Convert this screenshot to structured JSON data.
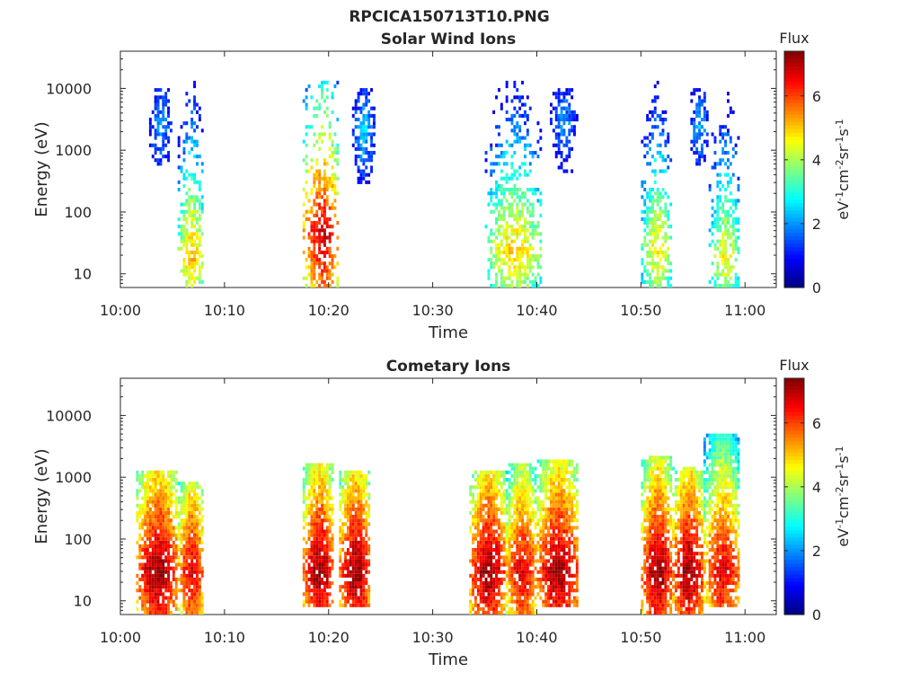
{
  "figure": {
    "title": "RPCICA150713T10.PNG"
  },
  "colorbar": {
    "label": "Flux",
    "unit_parts": [
      "eV",
      "-1",
      "cm",
      "-2",
      "sr",
      "-1",
      "s",
      "-1"
    ],
    "range": [
      0,
      7.4
    ],
    "ticks": [
      "0",
      "2",
      "4",
      "6"
    ]
  },
  "chart_data": [
    {
      "type": "heatmap",
      "title": "Solar Wind Ions",
      "xlabel": "Time",
      "ylabel": "Energy (eV)",
      "x_ticks": [
        "10:00",
        "10:10",
        "10:20",
        "10:30",
        "10:40",
        "10:50",
        "11:00"
      ],
      "xlim_minutes": [
        0,
        63
      ],
      "y_scale": "log",
      "y_ticks": [
        "10",
        "100",
        "1000",
        "10000"
      ],
      "ylim_eV": [
        6,
        40000
      ],
      "bursts": [
        {
          "start": "10:02:30",
          "end": "10:05:00",
          "emin_eV": 600,
          "emax_eV": 10000,
          "peak_eV": 2500,
          "peak_flux": 2.1
        },
        {
          "start": "10:05:30",
          "end": "10:08:00",
          "emin_eV": 6,
          "emax_eV": 14000,
          "peak_eV": 20,
          "peak_flux": 5.2
        },
        {
          "start": "10:17:30",
          "end": "10:21:00",
          "emin_eV": 6,
          "emax_eV": 14000,
          "peak_eV": 40,
          "peak_flux": 6.8
        },
        {
          "start": "10:22:00",
          "end": "10:24:30",
          "emin_eV": 300,
          "emax_eV": 10000,
          "peak_eV": 2000,
          "peak_flux": 2.4
        },
        {
          "start": "10:35:00",
          "end": "10:40:30",
          "emin_eV": 6,
          "emax_eV": 14000,
          "peak_eV": 25,
          "peak_flux": 5.0
        },
        {
          "start": "10:41:00",
          "end": "10:44:00",
          "emin_eV": 400,
          "emax_eV": 10000,
          "peak_eV": 3000,
          "peak_flux": 2.0
        },
        {
          "start": "10:50:00",
          "end": "10:53:00",
          "emin_eV": 6,
          "emax_eV": 14000,
          "peak_eV": 25,
          "peak_flux": 4.8
        },
        {
          "start": "10:54:30",
          "end": "10:56:30",
          "emin_eV": 600,
          "emax_eV": 10000,
          "peak_eV": 2500,
          "peak_flux": 2.2
        },
        {
          "start": "10:56:30",
          "end": "10:59:30",
          "emin_eV": 6,
          "emax_eV": 14000,
          "peak_eV": 20,
          "peak_flux": 4.6
        }
      ]
    },
    {
      "type": "heatmap",
      "title": "Cometary Ions",
      "xlabel": "Time",
      "ylabel": "Energy (eV)",
      "x_ticks": [
        "10:00",
        "10:10",
        "10:20",
        "10:30",
        "10:40",
        "10:50",
        "11:00"
      ],
      "xlim_minutes": [
        0,
        63
      ],
      "y_scale": "log",
      "y_ticks": [
        "10",
        "100",
        "1000",
        "10000"
      ],
      "ylim_eV": [
        6,
        40000
      ],
      "bursts": [
        {
          "start": "10:01:30",
          "end": "10:05:30",
          "emin_eV": 6,
          "emax_eV": 1300,
          "peak_eV": 30,
          "peak_flux": 7.3
        },
        {
          "start": "10:05:30",
          "end": "10:08:00",
          "emin_eV": 6,
          "emax_eV": 800,
          "peak_eV": 30,
          "peak_flux": 6.8
        },
        {
          "start": "10:17:30",
          "end": "10:20:30",
          "emin_eV": 8,
          "emax_eV": 1700,
          "peak_eV": 30,
          "peak_flux": 7.3
        },
        {
          "start": "10:21:00",
          "end": "10:24:00",
          "emin_eV": 8,
          "emax_eV": 1300,
          "peak_eV": 30,
          "peak_flux": 7.3
        },
        {
          "start": "10:33:30",
          "end": "10:37:00",
          "emin_eV": 6,
          "emax_eV": 1300,
          "peak_eV": 30,
          "peak_flux": 7.3
        },
        {
          "start": "10:37:00",
          "end": "10:40:00",
          "emin_eV": 6,
          "emax_eV": 1600,
          "peak_eV": 30,
          "peak_flux": 6.8
        },
        {
          "start": "10:40:00",
          "end": "10:44:00",
          "emin_eV": 8,
          "emax_eV": 2000,
          "peak_eV": 30,
          "peak_flux": 7.3
        },
        {
          "start": "10:50:00",
          "end": "10:53:00",
          "emin_eV": 6,
          "emax_eV": 2200,
          "peak_eV": 30,
          "peak_flux": 7.3
        },
        {
          "start": "10:53:00",
          "end": "10:56:00",
          "emin_eV": 6,
          "emax_eV": 1500,
          "peak_eV": 30,
          "peak_flux": 7.3
        },
        {
          "start": "10:56:00",
          "end": "10:59:30",
          "emin_eV": 8,
          "emax_eV": 5000,
          "peak_eV": 30,
          "peak_flux": 6.8
        }
      ]
    }
  ]
}
